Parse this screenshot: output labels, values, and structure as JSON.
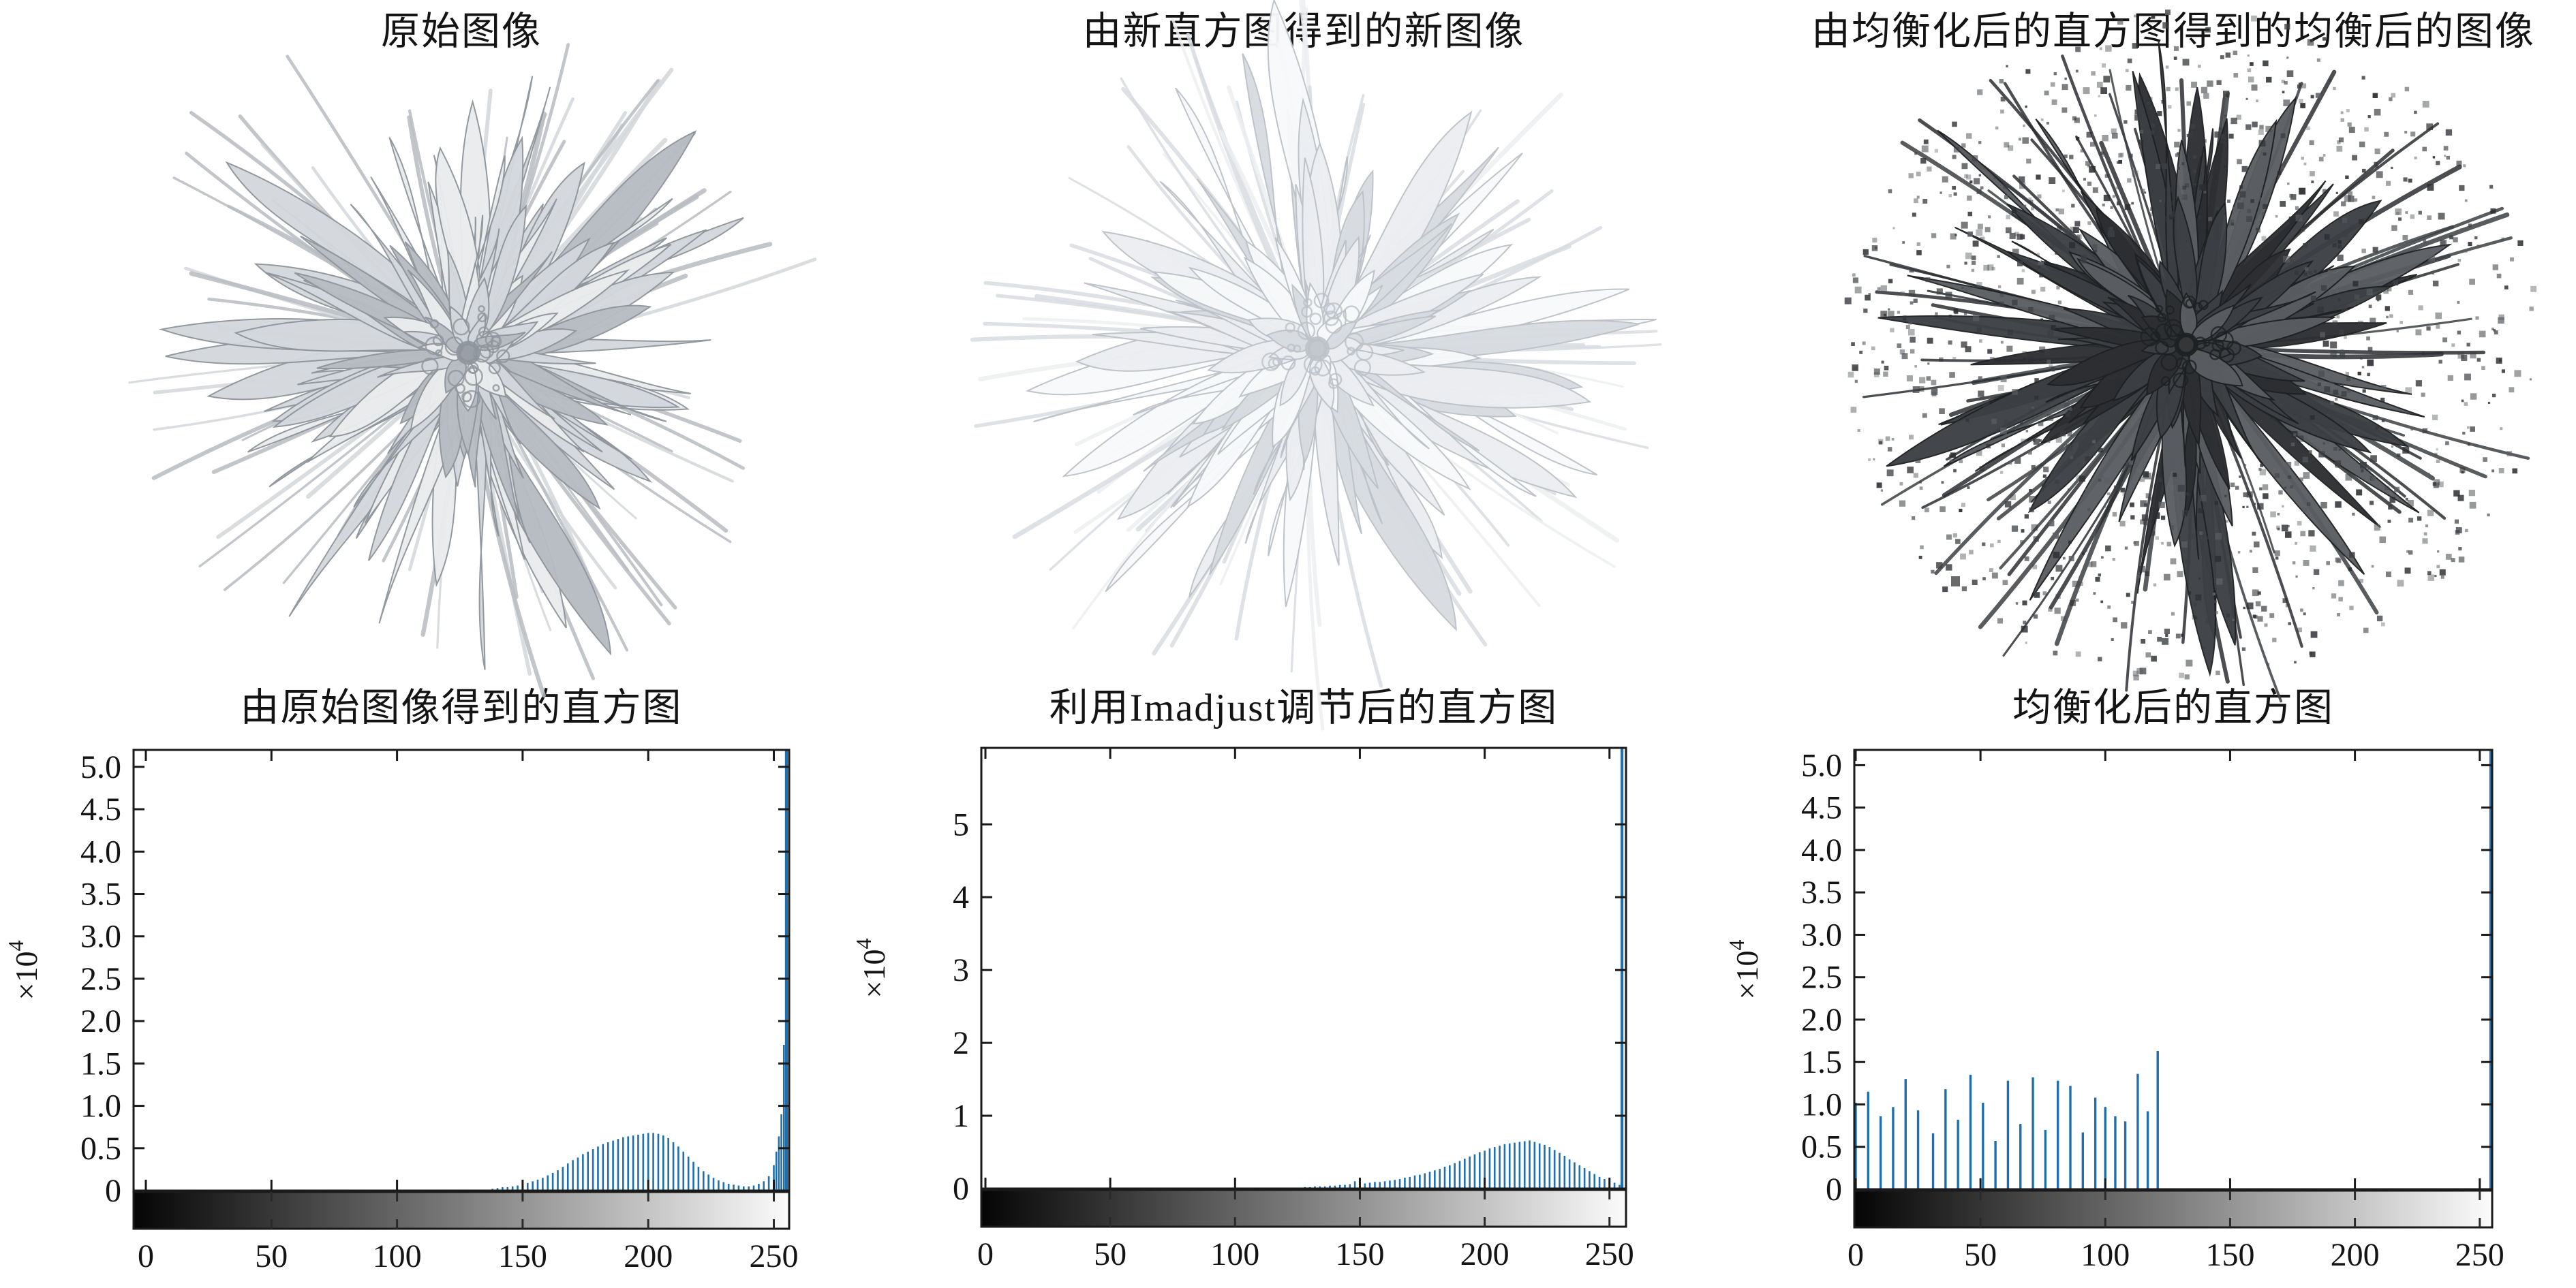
{
  "figure": {
    "background": "#ffffff",
    "axis_color": "#1a1a1a",
    "stem_color": "#1f6fae"
  },
  "images": [
    {
      "title": "原始图像",
      "description": "light gray chrysanthemum flower on white background",
      "tones": {
        "base": "#d4d7db",
        "light": "#eaecee",
        "shade": "#b7bcc2",
        "deep": "#8e959c",
        "speckle": false
      }
    },
    {
      "title": "由新直方图得到的新图像",
      "description": "brightened near-white chrysanthemum flower on white background",
      "tones": {
        "base": "#eceef1",
        "light": "#f8f9fb",
        "shade": "#d8dce0",
        "deep": "#bcc2c8",
        "speckle": false
      }
    },
    {
      "title": "由均衡化后的直方图得到的均衡后的图像",
      "description": "dark equalized chrysanthemum flower with blocky speckle noise on white background",
      "tones": {
        "base": "#3c3f43",
        "light": "#5a5e62",
        "shade": "#2c2e31",
        "deep": "#1e2022",
        "speckle": true
      }
    }
  ],
  "chart_data": [
    {
      "type": "bar",
      "title": "由原始图像得到的直方图",
      "xlabel": "",
      "ylabel": "×10⁴",
      "y_scale_label": "×10",
      "y_scale_exp": "4",
      "xlim": [
        0,
        255
      ],
      "ylim": [
        0,
        5.2
      ],
      "xticks": [
        0,
        50,
        100,
        150,
        200,
        250
      ],
      "ytick_values": [
        0,
        0.5,
        1.0,
        1.5,
        2.0,
        2.5,
        3.0,
        3.5,
        4.0,
        4.5,
        5.0
      ],
      "ytick_labels": [
        "0",
        "0.5",
        "1.0",
        "1.5",
        "2.0",
        "2.5",
        "3.0",
        "3.5",
        "4.0",
        "4.5",
        "5.0"
      ],
      "colorbar": {
        "from": "#050505",
        "to": "#fbfbfb"
      },
      "clipped_spike_x": 255,
      "stems": [
        [
          138,
          0.02
        ],
        [
          140,
          0.03
        ],
        [
          142,
          0.04
        ],
        [
          144,
          0.04
        ],
        [
          146,
          0.05
        ],
        [
          148,
          0.06
        ],
        [
          150,
          0.08
        ],
        [
          152,
          0.09
        ],
        [
          154,
          0.11
        ],
        [
          156,
          0.13
        ],
        [
          158,
          0.15
        ],
        [
          160,
          0.18
        ],
        [
          162,
          0.21
        ],
        [
          164,
          0.24
        ],
        [
          166,
          0.28
        ],
        [
          168,
          0.32
        ],
        [
          170,
          0.36
        ],
        [
          172,
          0.39
        ],
        [
          174,
          0.43
        ],
        [
          176,
          0.46
        ],
        [
          178,
          0.49
        ],
        [
          180,
          0.52
        ],
        [
          182,
          0.55
        ],
        [
          184,
          0.57
        ],
        [
          186,
          0.59
        ],
        [
          188,
          0.61
        ],
        [
          190,
          0.63
        ],
        [
          192,
          0.64
        ],
        [
          194,
          0.65
        ],
        [
          196,
          0.66
        ],
        [
          198,
          0.67
        ],
        [
          200,
          0.68
        ],
        [
          202,
          0.68
        ],
        [
          204,
          0.67
        ],
        [
          206,
          0.65
        ],
        [
          208,
          0.62
        ],
        [
          210,
          0.57
        ],
        [
          212,
          0.52
        ],
        [
          214,
          0.46
        ],
        [
          216,
          0.4
        ],
        [
          218,
          0.34
        ],
        [
          220,
          0.28
        ],
        [
          222,
          0.23
        ],
        [
          224,
          0.19
        ],
        [
          226,
          0.15
        ],
        [
          228,
          0.12
        ],
        [
          230,
          0.1
        ],
        [
          232,
          0.08
        ],
        [
          234,
          0.07
        ],
        [
          236,
          0.06
        ],
        [
          238,
          0.05
        ],
        [
          240,
          0.05
        ],
        [
          242,
          0.06
        ],
        [
          244,
          0.08
        ],
        [
          246,
          0.11
        ],
        [
          248,
          0.17
        ],
        [
          250,
          0.3
        ],
        [
          251,
          0.46
        ],
        [
          252,
          0.64
        ],
        [
          253,
          0.9
        ],
        [
          254,
          1.72
        ],
        [
          255,
          9
        ]
      ]
    },
    {
      "type": "bar",
      "title": "利用Imadjust调节后的直方图",
      "xlabel": "",
      "ylabel": "×10⁴",
      "y_scale_label": "×10",
      "y_scale_exp": "4",
      "xlim": [
        0,
        255
      ],
      "ylim": [
        0,
        6.05
      ],
      "xticks": [
        0,
        50,
        100,
        150,
        200,
        250
      ],
      "ytick_values": [
        0,
        1,
        2,
        3,
        4,
        5
      ],
      "ytick_labels": [
        "0",
        "1",
        "2",
        "3",
        "4",
        "5"
      ],
      "colorbar": {
        "from": "#050505",
        "to": "#fbfbfb"
      },
      "clipped_spike_x": 255,
      "stems": [
        [
          128,
          0.02
        ],
        [
          130,
          0.02
        ],
        [
          132,
          0.03
        ],
        [
          134,
          0.03
        ],
        [
          136,
          0.03
        ],
        [
          138,
          0.04
        ],
        [
          140,
          0.04
        ],
        [
          142,
          0.05
        ],
        [
          144,
          0.05
        ],
        [
          146,
          0.06
        ],
        [
          148,
          0.1
        ],
        [
          150,
          0.07
        ],
        [
          152,
          0.07
        ],
        [
          154,
          0.08
        ],
        [
          156,
          0.09
        ],
        [
          158,
          0.09
        ],
        [
          160,
          0.1
        ],
        [
          162,
          0.11
        ],
        [
          164,
          0.12
        ],
        [
          166,
          0.13
        ],
        [
          168,
          0.15
        ],
        [
          170,
          0.16
        ],
        [
          172,
          0.18
        ],
        [
          174,
          0.19
        ],
        [
          176,
          0.21
        ],
        [
          178,
          0.23
        ],
        [
          180,
          0.25
        ],
        [
          182,
          0.27
        ],
        [
          184,
          0.3
        ],
        [
          186,
          0.32
        ],
        [
          188,
          0.35
        ],
        [
          190,
          0.38
        ],
        [
          192,
          0.41
        ],
        [
          194,
          0.44
        ],
        [
          196,
          0.47
        ],
        [
          198,
          0.5
        ],
        [
          200,
          0.52
        ],
        [
          202,
          0.55
        ],
        [
          204,
          0.57
        ],
        [
          206,
          0.59
        ],
        [
          208,
          0.61
        ],
        [
          210,
          0.62
        ],
        [
          212,
          0.63
        ],
        [
          214,
          0.64
        ],
        [
          216,
          0.65
        ],
        [
          218,
          0.66
        ],
        [
          220,
          0.64
        ],
        [
          222,
          0.62
        ],
        [
          224,
          0.6
        ],
        [
          226,
          0.57
        ],
        [
          228,
          0.53
        ],
        [
          230,
          0.49
        ],
        [
          232,
          0.45
        ],
        [
          234,
          0.4
        ],
        [
          236,
          0.36
        ],
        [
          238,
          0.32
        ],
        [
          240,
          0.28
        ],
        [
          242,
          0.24
        ],
        [
          244,
          0.2
        ],
        [
          246,
          0.16
        ],
        [
          248,
          0.13
        ],
        [
          250,
          0.1
        ],
        [
          252,
          0.08
        ],
        [
          254,
          0.05
        ],
        [
          255,
          9
        ]
      ]
    },
    {
      "type": "bar",
      "title": "均衡化后的直方图",
      "xlabel": "",
      "ylabel": "×10⁴",
      "y_scale_label": "×10",
      "y_scale_exp": "4",
      "xlim": [
        0,
        255
      ],
      "ylim": [
        0,
        5.18
      ],
      "xticks": [
        0,
        50,
        100,
        150,
        200,
        250
      ],
      "ytick_values": [
        0,
        0.5,
        1.0,
        1.5,
        2.0,
        2.5,
        3.0,
        3.5,
        4.0,
        4.5,
        5.0
      ],
      "ytick_labels": [
        "0",
        "0.5",
        "1.0",
        "1.5",
        "2.0",
        "2.5",
        "3.0",
        "3.5",
        "4.0",
        "4.5",
        "5.0"
      ],
      "colorbar": {
        "from": "#050505",
        "to": "#fbfbfb"
      },
      "clipped_spike_x": 255,
      "stems": [
        [
          0,
          1.02
        ],
        [
          5,
          1.15
        ],
        [
          10,
          0.86
        ],
        [
          15,
          0.97
        ],
        [
          20,
          1.3
        ],
        [
          25,
          0.93
        ],
        [
          31,
          0.66
        ],
        [
          36,
          1.18
        ],
        [
          41,
          0.82
        ],
        [
          46,
          1.35
        ],
        [
          51,
          1.02
        ],
        [
          56,
          0.57
        ],
        [
          61,
          1.28
        ],
        [
          66,
          0.77
        ],
        [
          71,
          1.32
        ],
        [
          76,
          0.7
        ],
        [
          81,
          1.28
        ],
        [
          86,
          1.22
        ],
        [
          91,
          0.67
        ],
        [
          96,
          1.08
        ],
        [
          100,
          0.97
        ],
        [
          104,
          0.86
        ],
        [
          108,
          0.8
        ],
        [
          113,
          1.36
        ],
        [
          117,
          0.92
        ],
        [
          121,
          1.63
        ],
        [
          255,
          9
        ]
      ]
    }
  ]
}
